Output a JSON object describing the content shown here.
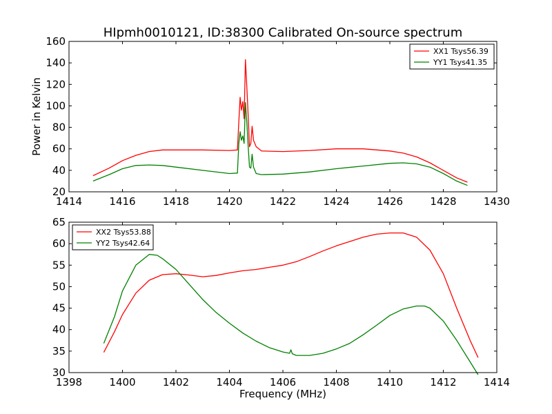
{
  "title": "HIpmh0010121, ID:38300 Calibrated On-source spectrum",
  "chart_data": [
    {
      "type": "line",
      "ylabel": "Power in Kelvin",
      "xlabel": "",
      "xlim": [
        1414,
        1430
      ],
      "ylim": [
        20,
        160
      ],
      "xticks": [
        "1414",
        "1416",
        "1418",
        "1420",
        "1422",
        "1424",
        "1426",
        "1428",
        "1430"
      ],
      "yticks": [
        "20",
        "40",
        "60",
        "80",
        "100",
        "120",
        "140",
        "160"
      ],
      "grid": false,
      "legend_position": "top-right",
      "series": [
        {
          "name": "XX1 Tsys56.39",
          "color": "#ff0000",
          "x": [
            1414.9,
            1415.5,
            1416.0,
            1416.5,
            1417.0,
            1417.5,
            1418.0,
            1419.0,
            1420.0,
            1420.3,
            1420.35,
            1420.4,
            1420.45,
            1420.5,
            1420.55,
            1420.6,
            1420.65,
            1420.7,
            1420.75,
            1420.8,
            1420.85,
            1420.9,
            1421.0,
            1421.2,
            1422.0,
            1423.0,
            1424.0,
            1425.0,
            1426.0,
            1426.5,
            1427.0,
            1427.5,
            1428.0,
            1428.5,
            1428.9
          ],
          "y": [
            35,
            42,
            49,
            54,
            57.5,
            59,
            59,
            59,
            58.5,
            59,
            85,
            108,
            96,
            104,
            88,
            143,
            118,
            92,
            62,
            65,
            81,
            68,
            62,
            58,
            57.5,
            58.5,
            60,
            60,
            58,
            56,
            52.5,
            47,
            40,
            33,
            29
          ]
        },
        {
          "name": "YY1 Tsys41.35",
          "color": "#008000",
          "x": [
            1414.9,
            1415.5,
            1416.0,
            1416.5,
            1417.0,
            1417.5,
            1418.0,
            1419.0,
            1420.0,
            1420.3,
            1420.35,
            1420.4,
            1420.45,
            1420.5,
            1420.55,
            1420.6,
            1420.65,
            1420.7,
            1420.75,
            1420.8,
            1420.85,
            1420.9,
            1421.0,
            1421.2,
            1422.0,
            1423.0,
            1424.0,
            1425.0,
            1426.0,
            1426.5,
            1427.0,
            1427.5,
            1428.0,
            1428.5,
            1428.9
          ],
          "y": [
            30,
            36,
            41.5,
            44.5,
            45,
            44.5,
            43,
            40,
            37,
            37.5,
            65,
            76,
            68,
            72,
            65,
            103,
            85,
            63,
            43,
            42,
            55,
            43,
            37,
            36,
            36.5,
            38.5,
            41.5,
            44,
            46.5,
            47,
            46,
            43,
            37,
            30,
            26
          ]
        }
      ]
    },
    {
      "type": "line",
      "ylabel": "",
      "xlabel": "Frequency (MHz)",
      "xlim": [
        1398,
        1414
      ],
      "ylim": [
        30,
        65
      ],
      "xticks": [
        "1398",
        "1400",
        "1402",
        "1404",
        "1406",
        "1408",
        "1410",
        "1412",
        "1414"
      ],
      "yticks": [
        "30",
        "35",
        "40",
        "45",
        "50",
        "55",
        "60",
        "65"
      ],
      "grid": false,
      "legend_position": "top-left",
      "series": [
        {
          "name": "XX2 Tsys53.88",
          "color": "#ff0000",
          "x": [
            1399.3,
            1399.7,
            1400.0,
            1400.5,
            1401.0,
            1401.5,
            1402.0,
            1402.5,
            1403.0,
            1403.5,
            1404.0,
            1404.5,
            1405.0,
            1405.5,
            1406.0,
            1406.5,
            1407.0,
            1407.5,
            1408.0,
            1408.5,
            1409.0,
            1409.5,
            1410.0,
            1410.5,
            1411.0,
            1411.5,
            1412.0,
            1412.5,
            1413.0,
            1413.3
          ],
          "y": [
            34.7,
            39.5,
            43.5,
            48.5,
            51.5,
            52.8,
            53,
            52.7,
            52.3,
            52.6,
            53.2,
            53.7,
            54,
            54.5,
            55,
            55.8,
            57,
            58.3,
            59.5,
            60.5,
            61.5,
            62.2,
            62.5,
            62.5,
            61.5,
            58.5,
            53,
            45,
            37.5,
            33.5
          ]
        },
        {
          "name": "YY2 Tsys42.64",
          "color": "#008000",
          "x": [
            1399.3,
            1399.7,
            1400.0,
            1400.5,
            1401.0,
            1401.3,
            1401.5,
            1402.0,
            1402.5,
            1403.0,
            1403.5,
            1404.0,
            1404.5,
            1405.0,
            1405.5,
            1406.0,
            1406.25,
            1406.3,
            1406.35,
            1406.5,
            1407.0,
            1407.5,
            1408.0,
            1408.5,
            1409.0,
            1409.5,
            1410.0,
            1410.5,
            1411.0,
            1411.3,
            1411.5,
            1412.0,
            1412.5,
            1413.0,
            1413.3
          ],
          "y": [
            36.8,
            43,
            49,
            55,
            57.5,
            57.3,
            56.5,
            54,
            50.5,
            47,
            44,
            41.5,
            39.2,
            37.3,
            35.8,
            34.8,
            34.5,
            35.3,
            34.4,
            34,
            34,
            34.5,
            35.5,
            36.8,
            38.8,
            41,
            43.3,
            44.8,
            45.5,
            45.5,
            45,
            42,
            37.5,
            32.5,
            29.5
          ]
        }
      ]
    }
  ]
}
